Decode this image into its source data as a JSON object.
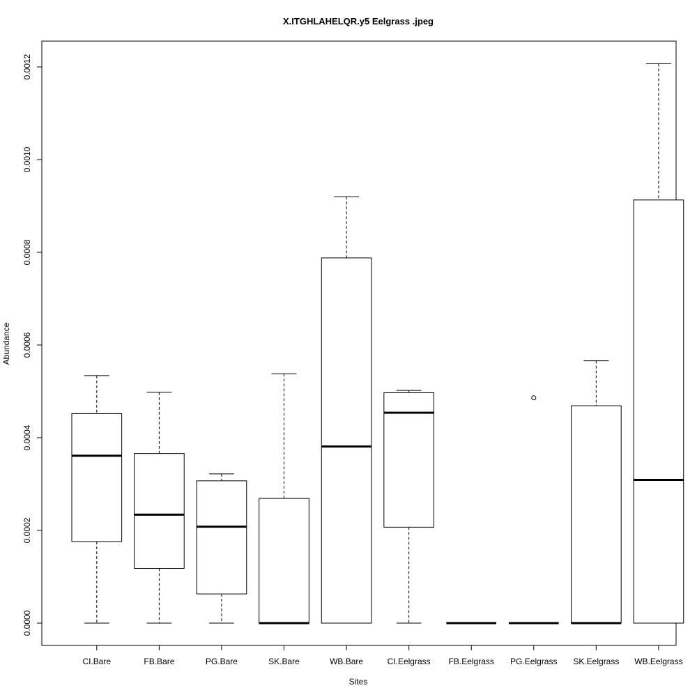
{
  "chart_data": {
    "type": "boxplot",
    "title": "X.ITGHLAHELQR.y5 Eelgrass .jpeg",
    "xlabel": "Sites",
    "ylabel": "Abundance",
    "ylim": [
      -5e-05,
      0.00125
    ],
    "yticks": [
      0,
      0.0002,
      0.0004,
      0.0006,
      0.0008,
      0.001,
      0.0012
    ],
    "ytick_labels": [
      "0.0000",
      "0.0002",
      "0.0004",
      "0.0006",
      "0.0008",
      "0.0010",
      "0.0012"
    ],
    "grid": false,
    "legend": "none",
    "categories": [
      "CI.Bare",
      "FB.Bare",
      "PG.Bare",
      "SK.Bare",
      "WB.Bare",
      "CI.Eelgrass",
      "FB.Eelgrass",
      "PG.Eelgrass",
      "SK.Eelgrass",
      "WB.Eelgrass"
    ],
    "boxes": [
      {
        "category": "CI.Bare",
        "whisker_low": 0,
        "q1": 0.000176,
        "median": 0.000361,
        "q3": 0.000452,
        "whisker_high": 0.000534,
        "outliers": []
      },
      {
        "category": "FB.Bare",
        "whisker_low": 0,
        "q1": 0.000118,
        "median": 0.000234,
        "q3": 0.000366,
        "whisker_high": 0.000498,
        "outliers": []
      },
      {
        "category": "PG.Bare",
        "whisker_low": 0,
        "q1": 6.3e-05,
        "median": 0.000208,
        "q3": 0.000307,
        "whisker_high": 0.000322,
        "outliers": []
      },
      {
        "category": "SK.Bare",
        "whisker_low": 0,
        "q1": 0,
        "median": 0,
        "q3": 0.000269,
        "whisker_high": 0.000538,
        "outliers": []
      },
      {
        "category": "WB.Bare",
        "whisker_low": 0,
        "q1": 0,
        "median": 0.000381,
        "q3": 0.000788,
        "whisker_high": 0.00092,
        "outliers": []
      },
      {
        "category": "CI.Eelgrass",
        "whisker_low": 0,
        "q1": 0.000207,
        "median": 0.000454,
        "q3": 0.000497,
        "whisker_high": 0.000502,
        "outliers": []
      },
      {
        "category": "FB.Eelgrass",
        "whisker_low": 0,
        "q1": 0,
        "median": 0,
        "q3": 0,
        "whisker_high": 0,
        "outliers": []
      },
      {
        "category": "PG.Eelgrass",
        "whisker_low": 0,
        "q1": 0,
        "median": 0,
        "q3": 0,
        "whisker_high": 0,
        "outliers": [
          0.000486
        ]
      },
      {
        "category": "SK.Eelgrass",
        "whisker_low": 0,
        "q1": 0,
        "median": 0,
        "q3": 0.000469,
        "whisker_high": 0.000566,
        "outliers": []
      },
      {
        "category": "WB.Eelgrass",
        "whisker_low": 0,
        "q1": 0,
        "median": 0.000309,
        "q3": 0.000913,
        "whisker_high": 0.001207,
        "outliers": []
      }
    ]
  }
}
